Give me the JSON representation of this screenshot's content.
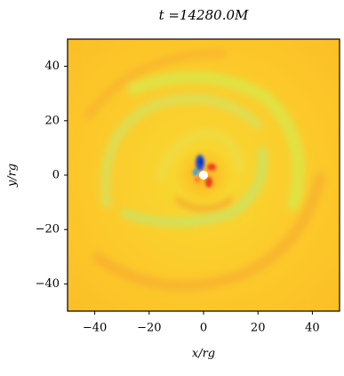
{
  "chart_data": {
    "type": "image",
    "title": "t =14280.0M",
    "xlabel": "x/rg",
    "ylabel": "y/rg",
    "xlim": [
      -50,
      50
    ],
    "ylim": [
      -50,
      50
    ],
    "xticks": [
      {
        "value": -40,
        "label": "−40"
      },
      {
        "value": -20,
        "label": "−20"
      },
      0,
      20,
      40
    ],
    "yticks": [
      {
        "value": -40,
        "label": "−40"
      },
      {
        "value": -20,
        "label": "−20"
      },
      0,
      20,
      40
    ]
  }
}
